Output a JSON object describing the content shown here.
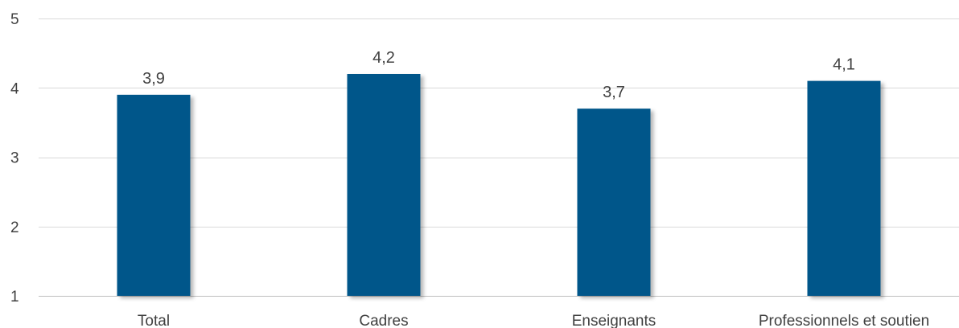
{
  "chart_data": {
    "type": "bar",
    "categories": [
      "Total",
      "Cadres",
      "Enseignants",
      "Professionnels et soutien"
    ],
    "values": [
      3.9,
      4.2,
      3.7,
      4.1
    ],
    "value_labels": [
      "3,9",
      "4,2",
      "3,7",
      "4,1"
    ],
    "title": "",
    "xlabel": "",
    "ylabel": "",
    "ylim": [
      1,
      5
    ],
    "yticks": [
      1,
      2,
      3,
      4,
      5
    ],
    "ytick_labels": [
      "1",
      "2",
      "3",
      "4",
      "5"
    ],
    "grid": true,
    "legend": "none",
    "bar_color": "#00578a"
  }
}
